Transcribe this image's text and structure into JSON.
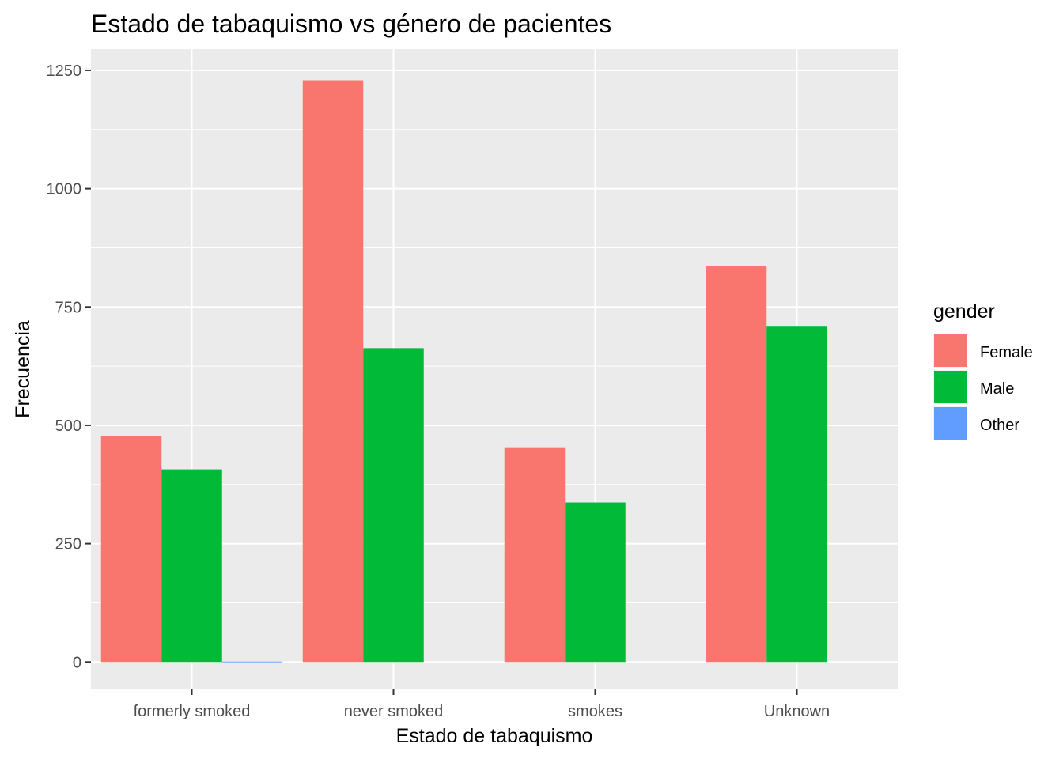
{
  "chart_data": {
    "type": "bar",
    "title": "Estado de tabaquismo vs género de pacientes",
    "xlabel": "Estado de tabaquismo",
    "ylabel": "Frecuencia",
    "categories": [
      "formerly smoked",
      "never smoked",
      "smokes",
      "Unknown"
    ],
    "series": [
      {
        "name": "Female",
        "color": "#F8766D",
        "values": [
          478,
          1229,
          452,
          836
        ]
      },
      {
        "name": "Male",
        "color": "#00BA38",
        "values": [
          407,
          663,
          337,
          710
        ]
      },
      {
        "name": "Other",
        "color": "#619CFF",
        "values": [
          1,
          null,
          null,
          null
        ]
      }
    ],
    "yticks": [
      0,
      250,
      500,
      750,
      1000,
      1250
    ],
    "ylim": [
      -58,
      1295
    ],
    "grid": true,
    "legend": {
      "title": "gender",
      "position": "right"
    }
  }
}
